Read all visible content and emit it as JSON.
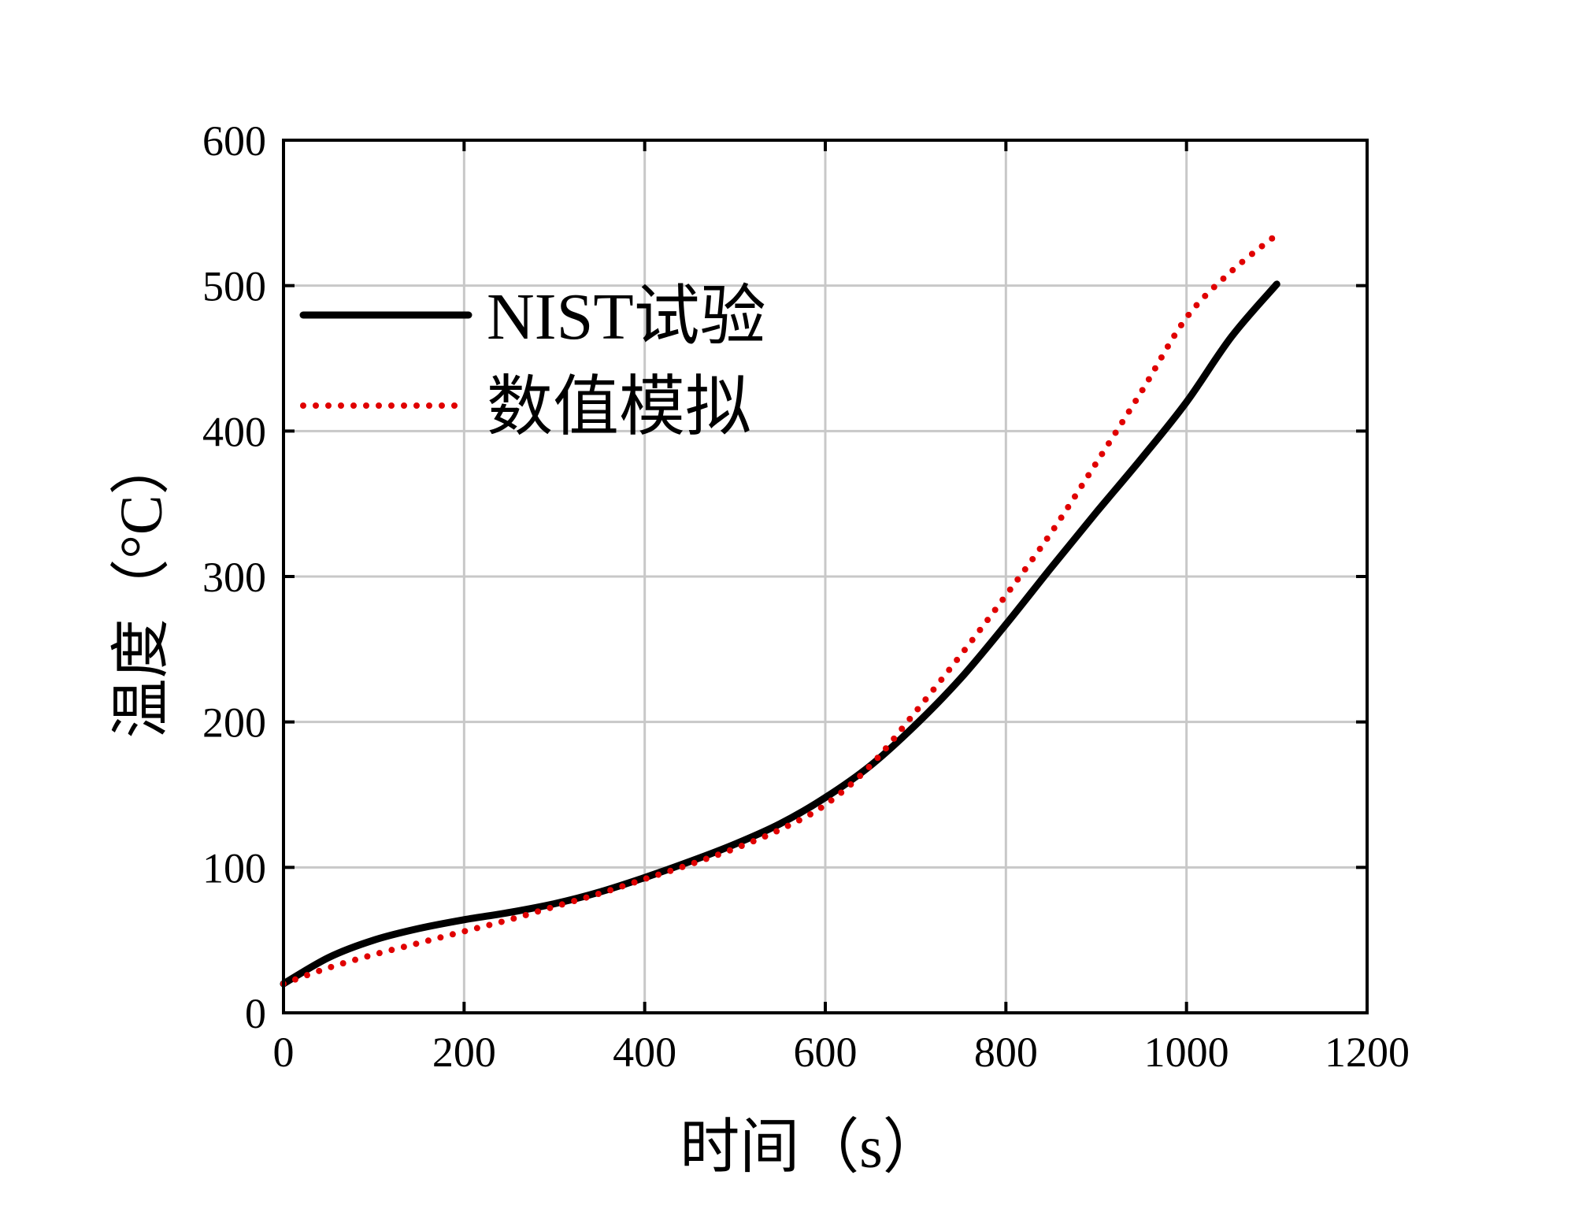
{
  "chart_data": {
    "type": "line",
    "title": "",
    "xlabel": "时间（s）",
    "ylabel": "温度（°C）",
    "xlim": [
      0,
      1200
    ],
    "ylim": [
      0,
      600
    ],
    "xticks": [
      0,
      200,
      400,
      600,
      800,
      1000,
      1200
    ],
    "yticks": [
      0,
      100,
      200,
      300,
      400,
      500,
      600
    ],
    "grid": true,
    "legend_position": "upper-left",
    "series": [
      {
        "name": "NIST试验",
        "style": "solid",
        "color": "#000000",
        "x": [
          0,
          50,
          100,
          150,
          200,
          250,
          300,
          350,
          400,
          450,
          500,
          550,
          600,
          650,
          700,
          750,
          800,
          850,
          900,
          950,
          1000,
          1050,
          1100
        ],
        "y": [
          20,
          38,
          50,
          58,
          64,
          69,
          75,
          83,
          93,
          104,
          116,
          130,
          148,
          170,
          198,
          230,
          267,
          306,
          344,
          381,
          420,
          465,
          501
        ]
      },
      {
        "name": "数值模拟",
        "style": "dotted",
        "color": "#e00000",
        "x": [
          0,
          50,
          100,
          150,
          200,
          250,
          300,
          350,
          400,
          450,
          500,
          550,
          600,
          650,
          700,
          750,
          800,
          850,
          900,
          950,
          1000,
          1050,
          1100
        ],
        "y": [
          20,
          31,
          40,
          48,
          56,
          64,
          73,
          82,
          92,
          102,
          113,
          126,
          143,
          170,
          207,
          246,
          287,
          330,
          378,
          427,
          478,
          510,
          535
        ]
      }
    ]
  }
}
